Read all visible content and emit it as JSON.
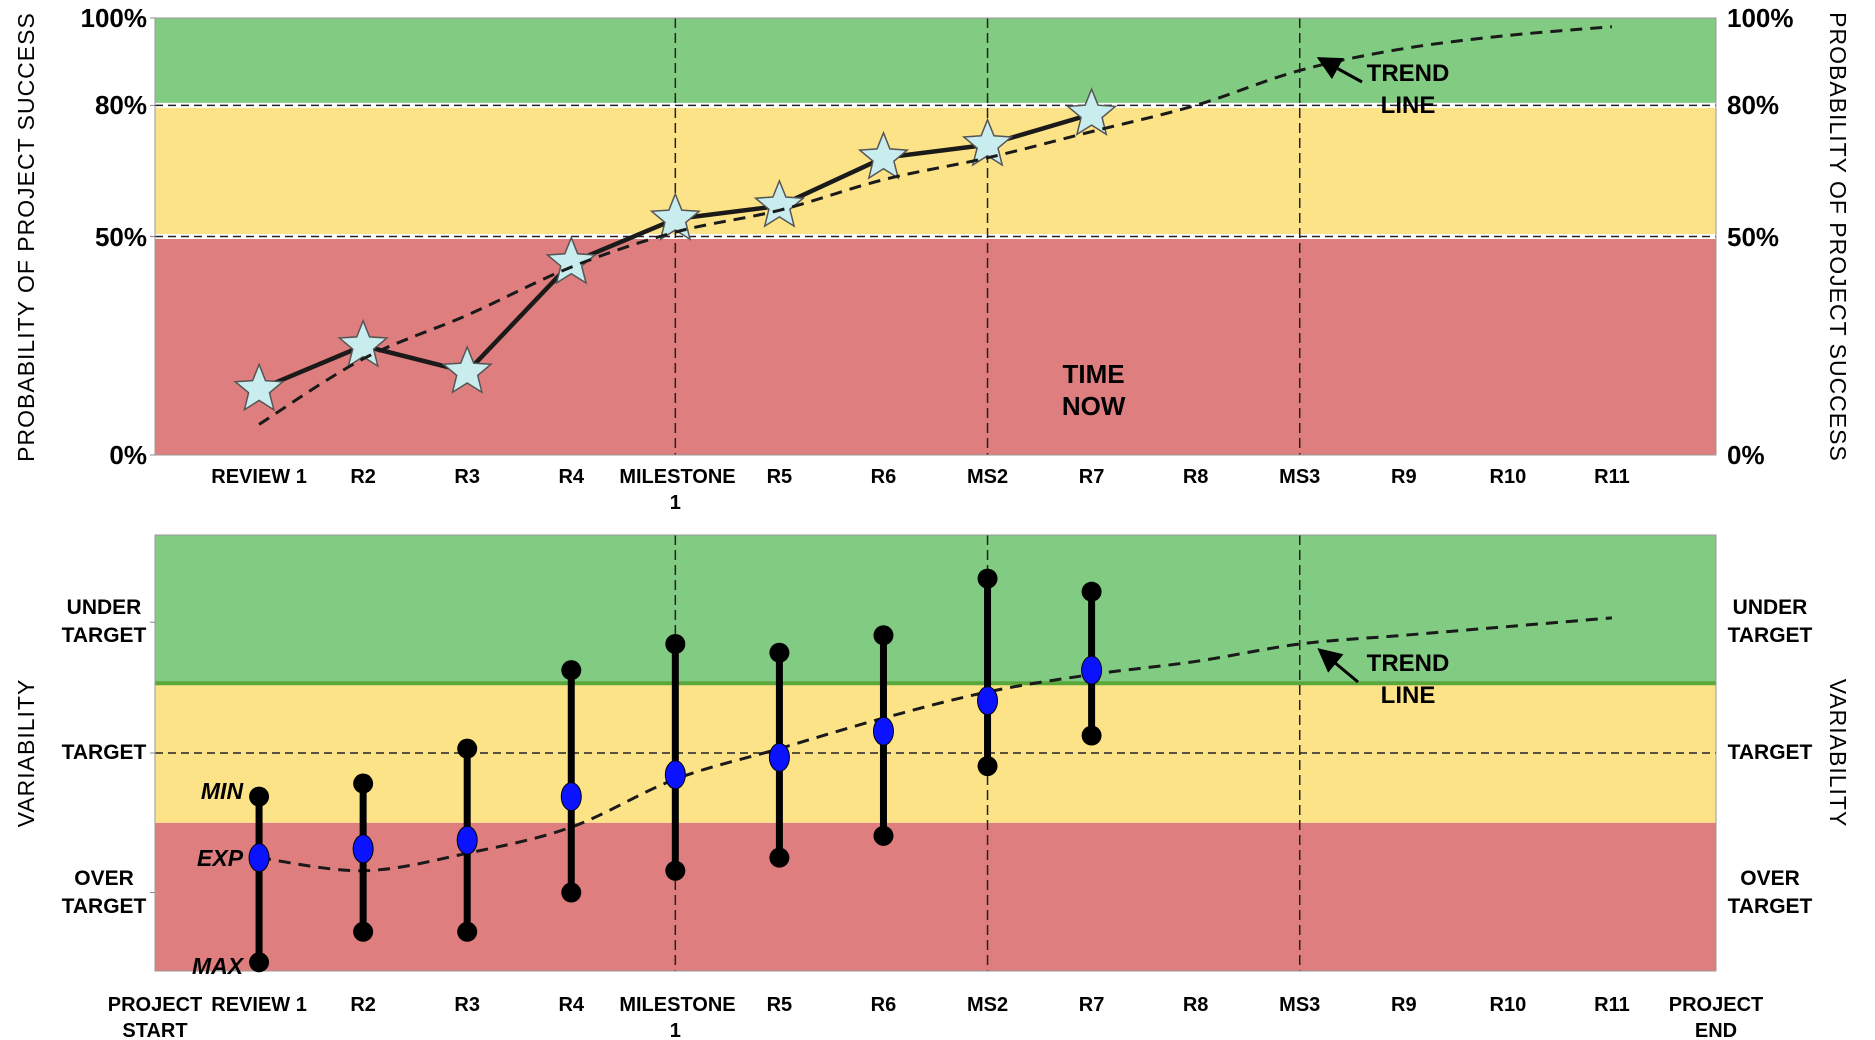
{
  "chart_data": [
    {
      "type": "line",
      "ylabel": "PROBABILITY OF PROJECT SUCCESS",
      "categories": [
        null,
        "REVIEW 1",
        "R2",
        "R3",
        "R4",
        "MILESTONE 1",
        "R5",
        "R6",
        "MS2",
        "R7",
        "R8",
        "MS3",
        "R9",
        "R10",
        "R11",
        null
      ],
      "series": [
        {
          "color": "#1a1a1a",
          "marker": "star",
          "marker_color": "#c9ecee",
          "values": [
            null,
            15,
            25,
            19,
            44,
            54,
            57,
            68,
            71,
            78,
            null,
            null,
            null,
            null,
            null,
            null
          ]
        },
        {
          "name": "TREND LINE",
          "color": "#1a1a1a",
          "dashed": true,
          "values": [
            null,
            7,
            22,
            32,
            43,
            51,
            56,
            63,
            68,
            74,
            80,
            88,
            93,
            96,
            98,
            null
          ]
        }
      ],
      "ylim": [
        0,
        100
      ],
      "yticks": [
        {
          "value": 0,
          "label": "0%"
        },
        {
          "value": 50,
          "label": "50%"
        },
        {
          "value": 80,
          "label": "80%"
        },
        {
          "value": 100,
          "label": "100%"
        }
      ],
      "bands": [
        {
          "from": 0,
          "to": 50,
          "color": "#df7e7e"
        },
        {
          "from": 50,
          "to": 80,
          "color": "#fde387"
        },
        {
          "from": 80,
          "to": 100,
          "color": "#82cb82"
        }
      ],
      "reference_lines": [
        50,
        80
      ],
      "vlines": [
        5,
        8,
        11
      ],
      "annotations": [
        "TIME NOW"
      ]
    },
    {
      "type": "range",
      "ylabel": "VARIABILITY",
      "categories": [
        "PROJECT START",
        "REVIEW 1",
        "R2",
        "R3",
        "R4",
        "MILESTONE 1",
        "R5",
        "R6",
        "MS2",
        "R7",
        "R8",
        "MS3",
        "R9",
        "R10",
        "R11",
        "PROJECT END"
      ],
      "series": [
        {
          "name": "MIN",
          "color": "#000000",
          "values": [
            null,
            40,
            43,
            51,
            69,
            75,
            73,
            77,
            90,
            87,
            null,
            null,
            null,
            null,
            null,
            null
          ]
        },
        {
          "name": "EXP",
          "color": "#0a12ff",
          "values": [
            null,
            26,
            28,
            30,
            40,
            45,
            49,
            55,
            62,
            69,
            null,
            null,
            null,
            null,
            null,
            null
          ]
        },
        {
          "name": "MAX",
          "color": "#000000",
          "values": [
            null,
            2,
            9,
            9,
            18,
            23,
            26,
            31,
            47,
            54,
            null,
            null,
            null,
            null,
            null,
            null
          ]
        },
        {
          "name": "TREND LINE",
          "color": "#1a1a1a",
          "dashed": true,
          "values": [
            null,
            26,
            23,
            27,
            33,
            44,
            51,
            58,
            64,
            68,
            71,
            75,
            77,
            79,
            81,
            null
          ]
        }
      ],
      "ylim": [
        0,
        100
      ],
      "yticks": [
        {
          "value": 18,
          "label": "OVER TARGET"
        },
        {
          "value": 50,
          "label": "TARGET"
        },
        {
          "value": 80,
          "label": "UNDER TARGET"
        }
      ],
      "bands": [
        {
          "from": 0,
          "to": 34,
          "color": "#df7e7e"
        },
        {
          "from": 34,
          "to": 66,
          "color": "#fde387"
        },
        {
          "from": 66,
          "to": 100,
          "color": "#82cb82"
        }
      ],
      "reference_lines": [
        50
      ],
      "vlines": [
        5,
        8,
        11
      ]
    }
  ]
}
